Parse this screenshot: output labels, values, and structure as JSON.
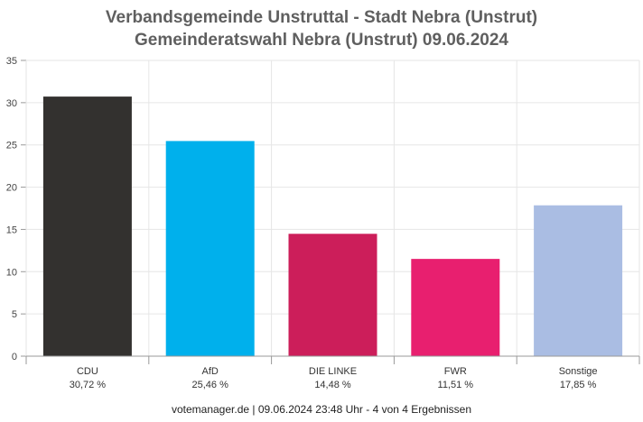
{
  "title_line1": "Verbandsgemeinde Unstruttal - Stadt Nebra (Unstrut)",
  "title_line2": "Gemeinderatswahl Nebra (Unstrut) 09.06.2024",
  "footer": "votemanager.de | 09.06.2024 23:48 Uhr - 4 von 4 Ergebnissen",
  "chart_data": {
    "type": "bar",
    "title": "Verbandsgemeinde Unstruttal - Stadt Nebra (Unstrut)",
    "subtitle": "Gemeinderatswahl Nebra (Unstrut) 09.06.2024",
    "categories": [
      "CDU",
      "AfD",
      "DIE LINKE",
      "FWR",
      "Sonstige"
    ],
    "values": [
      30.72,
      25.46,
      14.48,
      11.51,
      17.85
    ],
    "value_labels": [
      "30,72 %",
      "25,46 %",
      "14,48 %",
      "11,51 %",
      "17,85 %"
    ],
    "colors": [
      "#33312f",
      "#00b0ec",
      "#cc1e5a",
      "#e81f6f",
      "#aabde3"
    ],
    "ylim": [
      0,
      35
    ],
    "yticks": [
      0,
      5,
      10,
      15,
      20,
      25,
      30,
      35
    ],
    "xlabel": "",
    "ylabel": "",
    "grid": true
  }
}
